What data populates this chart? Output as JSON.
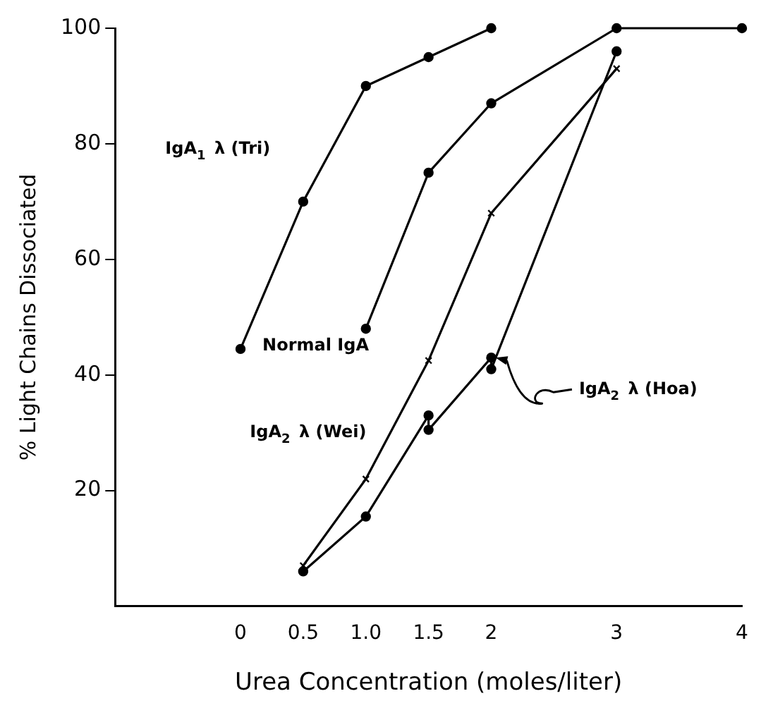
{
  "chart_data": {
    "type": "line",
    "xlabel": "Urea Concentration (moles/liter)",
    "ylabel": "% Light Chains Dissociated",
    "xlim": [
      -1,
      4
    ],
    "xticks": [
      0,
      {
        "value": 0.5,
        "label": "0.5"
      },
      {
        "value": 1,
        "label": "1.0"
      },
      {
        "value": 1.5,
        "label": "1.5"
      },
      2,
      3,
      4
    ],
    "ylim": [
      0,
      100
    ],
    "yticks": [
      20,
      40,
      60,
      80,
      100
    ],
    "grid": false,
    "legend": false,
    "series": [
      {
        "name": "IgA$_{1}$ λ (Tri)",
        "color": "#000000",
        "marker": "circle",
        "x": [
          0,
          0.5,
          1,
          1.5,
          2
        ],
        "values": [
          44.5,
          70,
          90,
          95,
          100
        ]
      },
      {
        "name": "Normal IgA",
        "color": "#000000",
        "marker": "circle",
        "x": [
          1,
          1.5,
          2,
          3,
          4
        ],
        "values": [
          48,
          75,
          87,
          100,
          100
        ]
      },
      {
        "name": "IgA$_{2}$ λ (Wei)",
        "color": "#000000",
        "marker": "cross",
        "x": [
          0.5,
          1,
          1.5,
          2,
          3
        ],
        "values": [
          7,
          22,
          42.5,
          68,
          93
        ]
      },
      {
        "name": "IgA$_{2}$ λ (Hoa)",
        "color": "#000000",
        "marker": "circle",
        "x": [
          0.5,
          1,
          1.5,
          1.5,
          2,
          2,
          3
        ],
        "values": [
          6,
          15.5,
          33,
          30.5,
          43,
          41,
          96
        ]
      }
    ]
  }
}
